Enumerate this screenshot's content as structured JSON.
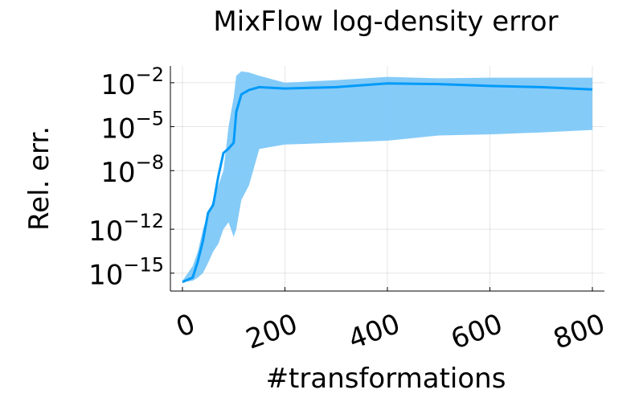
{
  "chart_data": {
    "type": "line",
    "title": "MixFlow log-density error",
    "xlabel": "#transformations",
    "ylabel": "Rel. err.",
    "log_y": true,
    "grid": true,
    "x": [
      0,
      20,
      30,
      40,
      50,
      60,
      70,
      80,
      90,
      100,
      105,
      115,
      130,
      150,
      200,
      300,
      400,
      500,
      600,
      700,
      800
    ],
    "series": [
      {
        "color": "#009af9",
        "band_color": "#7ec8f8",
        "values": [
          2.5e-16,
          5e-16,
          6.3e-15,
          1.6e-13,
          1.3e-11,
          4.5e-11,
          4e-09,
          1.6e-07,
          3.2e-07,
          7.9e-07,
          0.0001,
          0.0016,
          0.0032,
          0.005,
          0.004,
          0.005,
          0.009,
          0.008,
          0.006,
          0.005,
          0.0035
        ],
        "lower": [
          2.5e-16,
          3e-16,
          5e-16,
          1e-15,
          5e-15,
          3e-14,
          1e-13,
          1e-12,
          3e-12,
          3e-13,
          1e-12,
          1e-10,
          1e-09,
          3e-07,
          6e-07,
          8e-07,
          1.1e-06,
          2.5e-06,
          3e-06,
          4e-06,
          6e-06
        ],
        "upper": [
          3e-16,
          3e-15,
          3e-14,
          1e-12,
          1e-11,
          1e-10,
          1e-09,
          1e-08,
          1e-05,
          0.001,
          0.03,
          0.06,
          0.05,
          0.03,
          0.01,
          0.015,
          0.025,
          0.02,
          0.022,
          0.022,
          0.022
        ]
      }
    ],
    "xlim": [
      -23.5,
      823.5
    ],
    "xticks": [
      0,
      200,
      400,
      600,
      800
    ],
    "ylim": [
      0.14,
      6e-17
    ],
    "yticks": [
      {
        "value": 0.01,
        "label": [
          "10",
          "−2"
        ]
      },
      {
        "value": 1e-05,
        "label": [
          "10",
          "−5"
        ]
      },
      {
        "value": 1e-08,
        "label": [
          "10",
          "−8"
        ]
      },
      {
        "value": 1e-12,
        "label": [
          "10",
          "−12"
        ]
      },
      {
        "value": 1e-15,
        "label": [
          "10",
          "−15"
        ]
      }
    ]
  }
}
